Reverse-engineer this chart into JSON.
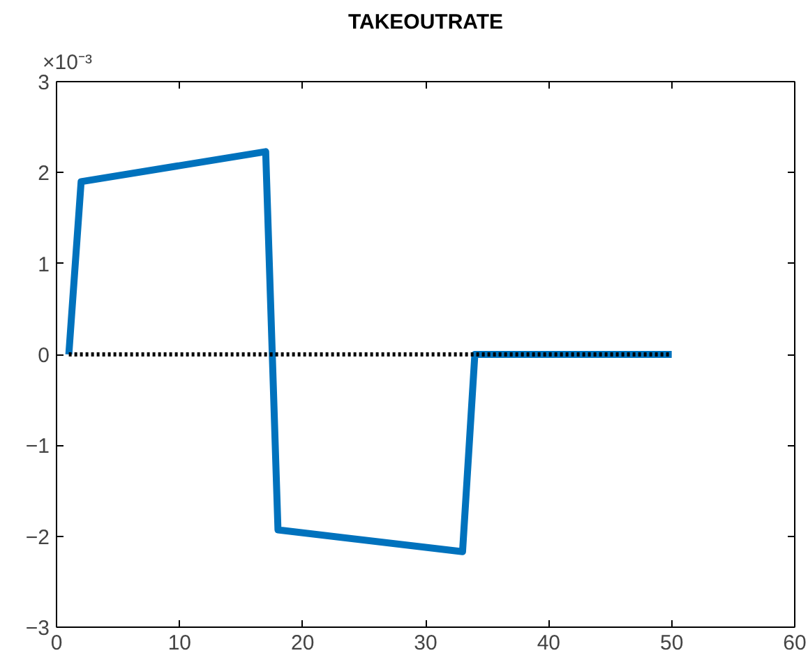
{
  "chart_data": {
    "type": "line",
    "title": "TAKEOUTRATE",
    "annotations": [
      "×10⁻³"
    ],
    "xlim": [
      0,
      60
    ],
    "xticks": [
      0,
      10,
      20,
      30,
      40,
      50,
      60
    ],
    "ylim": [
      -3,
      3
    ],
    "yticks": [
      -3,
      -2,
      -1,
      0,
      1,
      2,
      3
    ],
    "grid": false,
    "series": [
      {
        "color": "#0072bd",
        "x": [
          1,
          2,
          17,
          18,
          33,
          34,
          50
        ],
        "values": [
          0,
          1.9,
          2.23,
          -1.93,
          -2.17,
          0,
          0
        ]
      },
      {
        "color": "#000000",
        "line_style": "dotted",
        "x": [
          1,
          50
        ],
        "values": [
          0,
          0
        ]
      }
    ]
  }
}
